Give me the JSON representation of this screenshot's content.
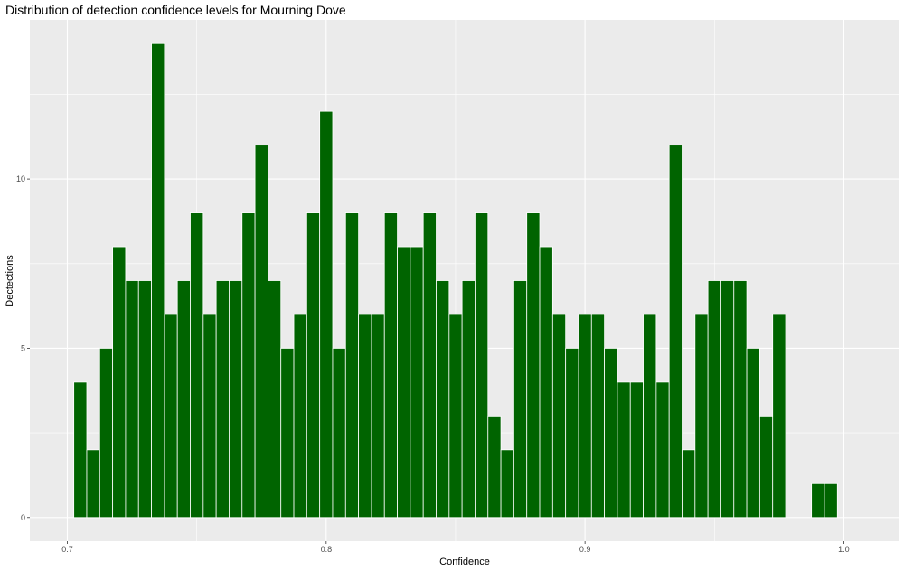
{
  "chart_data": {
    "type": "bar",
    "title": "Distribution of detection confidence levels for Mourning Dove",
    "xlabel": "Confidence",
    "ylabel": "Dectections",
    "xlim": [
      0.6855,
      1.0215
    ],
    "ylim": [
      -0.7,
      14.7
    ],
    "x_ticks": [
      0.7,
      0.8,
      0.9,
      1.0
    ],
    "x_tick_labels": [
      "0.7",
      "0.8",
      "0.9",
      "1.0"
    ],
    "y_ticks": [
      0,
      5,
      10
    ],
    "y_tick_labels": [
      "0",
      "5",
      "10"
    ],
    "bin_width": 0.005,
    "bin_start": 0.7025,
    "values": [
      4,
      2,
      5,
      8,
      7,
      7,
      14,
      6,
      7,
      9,
      6,
      7,
      7,
      9,
      11,
      7,
      5,
      6,
      9,
      12,
      5,
      9,
      6,
      6,
      9,
      8,
      8,
      9,
      7,
      6,
      7,
      9,
      3,
      2,
      7,
      9,
      8,
      6,
      5,
      6,
      6,
      5,
      4,
      4,
      6,
      4,
      11,
      2,
      6,
      7,
      7,
      7,
      5,
      3,
      6,
      0,
      0,
      1,
      1
    ],
    "bar_color": "#006400",
    "panel_color": "#ebebeb",
    "grid": true,
    "legend": "none"
  }
}
